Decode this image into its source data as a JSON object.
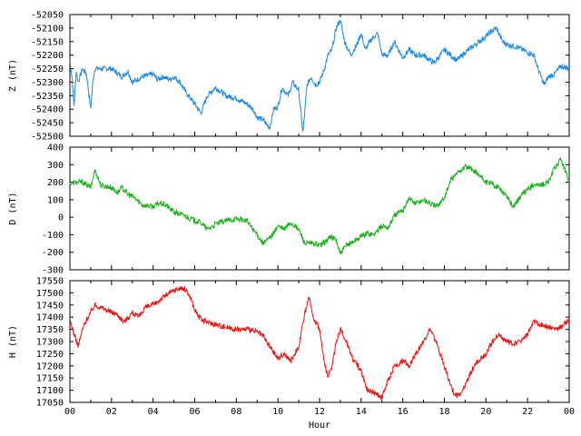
{
  "chart_data": [
    {
      "type": "line",
      "xlabel": "",
      "ylabel": "Z (nT)",
      "xlim": [
        0,
        24
      ],
      "ylim": [
        -52500,
        -52050
      ],
      "yticks": [
        -52050,
        -52100,
        -52150,
        -52200,
        -52250,
        -52300,
        -52350,
        -52400,
        -52450,
        -52500
      ],
      "color": "#1e88e5",
      "series": [
        {
          "x": [
            0,
            0.1,
            0.2,
            0.3,
            0.4,
            0.6,
            0.8,
            1.0,
            1.1,
            1.2,
            1.5,
            2.0,
            2.5,
            2.8,
            3.0,
            3.5,
            4.0,
            4.2,
            4.5,
            4.8,
            5.0,
            5.3,
            5.6,
            6.0,
            6.3,
            6.6,
            7.0,
            7.5,
            8.0,
            8.5,
            8.8,
            9.0,
            9.3,
            9.6,
            9.8,
            10.0,
            10.2,
            10.5,
            10.7,
            11.0,
            11.2,
            11.4,
            11.6,
            11.8,
            12.0,
            12.2,
            12.4,
            12.6,
            12.8,
            13.0,
            13.2,
            13.5,
            13.8,
            14.0,
            14.2,
            14.5,
            14.8,
            15.0,
            15.3,
            15.6,
            16.0,
            16.3,
            16.6,
            17.0,
            17.5,
            18.0,
            18.3,
            18.6,
            19.0,
            19.5,
            20.0,
            20.3,
            20.5,
            20.8,
            21.0,
            21.5,
            22.0,
            22.3,
            22.5,
            22.8,
            23.0,
            23.3,
            23.6,
            24.0
          ],
          "values": [
            -52220,
            -52280,
            -52390,
            -52260,
            -52300,
            -52250,
            -52270,
            -52400,
            -52300,
            -52250,
            -52250,
            -52250,
            -52280,
            -52260,
            -52300,
            -52280,
            -52270,
            -52290,
            -52280,
            -52290,
            -52280,
            -52300,
            -52340,
            -52380,
            -52415,
            -52350,
            -52320,
            -52350,
            -52360,
            -52380,
            -52400,
            -52430,
            -52440,
            -52470,
            -52400,
            -52390,
            -52320,
            -52350,
            -52300,
            -52330,
            -52490,
            -52310,
            -52280,
            -52310,
            -52300,
            -52260,
            -52200,
            -52180,
            -52100,
            -52070,
            -52150,
            -52200,
            -52160,
            -52120,
            -52180,
            -52140,
            -52120,
            -52200,
            -52200,
            -52150,
            -52210,
            -52180,
            -52200,
            -52200,
            -52230,
            -52180,
            -52200,
            -52220,
            -52190,
            -52160,
            -52130,
            -52110,
            -52100,
            -52150,
            -52160,
            -52170,
            -52190,
            -52200,
            -52250,
            -52310,
            -52280,
            -52270,
            -52240,
            -52250
          ]
        }
      ]
    },
    {
      "type": "line",
      "xlabel": "",
      "ylabel": "D (nT)",
      "xlim": [
        0,
        24
      ],
      "ylim": [
        -300,
        400
      ],
      "yticks": [
        400,
        300,
        200,
        100,
        0,
        -100,
        -200,
        -300
      ],
      "color": "#1ab01a",
      "series": [
        {
          "x": [
            0,
            0.3,
            0.6,
            1.0,
            1.2,
            1.5,
            2.0,
            2.3,
            2.5,
            2.8,
            3.0,
            3.5,
            4.0,
            4.3,
            4.6,
            5.0,
            5.5,
            6.0,
            6.3,
            6.6,
            7.0,
            7.5,
            8.0,
            8.5,
            9.0,
            9.3,
            9.5,
            9.8,
            10.0,
            10.3,
            10.6,
            11.0,
            11.3,
            11.6,
            12.0,
            12.3,
            12.5,
            12.8,
            13.0,
            13.3,
            13.6,
            14.0,
            14.3,
            14.6,
            15.0,
            15.3,
            15.6,
            16.0,
            16.3,
            16.6,
            17.0,
            17.3,
            17.6,
            18.0,
            18.3,
            18.6,
            19.0,
            19.5,
            20.0,
            20.3,
            20.6,
            21.0,
            21.3,
            21.6,
            22.0,
            22.3,
            22.6,
            23.0,
            23.3,
            23.6,
            24.0
          ],
          "values": [
            190,
            200,
            200,
            170,
            270,
            180,
            170,
            140,
            170,
            130,
            120,
            70,
            60,
            80,
            70,
            30,
            10,
            -20,
            -30,
            -70,
            -40,
            -20,
            -10,
            -20,
            -100,
            -150,
            -130,
            -90,
            -50,
            -70,
            -30,
            -70,
            -150,
            -150,
            -160,
            -140,
            -110,
            -130,
            -210,
            -160,
            -140,
            -110,
            -90,
            -100,
            -50,
            -60,
            10,
            40,
            110,
            80,
            100,
            80,
            60,
            110,
            210,
            250,
            290,
            260,
            200,
            190,
            170,
            120,
            60,
            110,
            160,
            190,
            180,
            200,
            280,
            330,
            200
          ]
        }
      ]
    },
    {
      "type": "line",
      "xlabel": "Hour",
      "ylabel": "H (nT)",
      "xlim": [
        0,
        24
      ],
      "ylim": [
        17050,
        17550
      ],
      "yticks": [
        17550,
        17500,
        17450,
        17400,
        17350,
        17300,
        17250,
        17200,
        17150,
        17100,
        17050
      ],
      "xticks": [
        "00",
        "02",
        "04",
        "06",
        "08",
        "10",
        "12",
        "14",
        "16",
        "18",
        "20",
        "22",
        "00"
      ],
      "color": "#ee1111",
      "series": [
        {
          "x": [
            0,
            0.2,
            0.4,
            0.6,
            0.8,
            1.0,
            1.2,
            1.5,
            2.0,
            2.3,
            2.6,
            3.0,
            3.3,
            3.6,
            4.0,
            4.3,
            4.6,
            5.0,
            5.3,
            5.6,
            5.8,
            6.0,
            6.3,
            6.6,
            7.0,
            7.5,
            8.0,
            8.5,
            9.0,
            9.3,
            9.6,
            10.0,
            10.3,
            10.6,
            11.0,
            11.3,
            11.5,
            11.7,
            12.0,
            12.2,
            12.4,
            12.6,
            12.8,
            13.0,
            13.3,
            13.6,
            14.0,
            14.3,
            14.6,
            15.0,
            15.3,
            15.6,
            16.0,
            16.3,
            16.6,
            17.0,
            17.3,
            17.6,
            18.0,
            18.3,
            18.5,
            18.8,
            19.0,
            19.3,
            19.6,
            20.0,
            20.3,
            20.6,
            21.0,
            21.3,
            21.6,
            22.0,
            22.3,
            22.6,
            23.0,
            23.3,
            23.6,
            24.0
          ],
          "values": [
            17390,
            17330,
            17280,
            17350,
            17390,
            17420,
            17450,
            17440,
            17420,
            17410,
            17380,
            17420,
            17400,
            17440,
            17450,
            17470,
            17490,
            17510,
            17520,
            17510,
            17480,
            17430,
            17390,
            17380,
            17370,
            17360,
            17350,
            17350,
            17340,
            17320,
            17280,
            17230,
            17250,
            17220,
            17280,
            17420,
            17480,
            17400,
            17350,
            17230,
            17150,
            17200,
            17300,
            17350,
            17300,
            17230,
            17180,
            17100,
            17090,
            17070,
            17140,
            17200,
            17220,
            17200,
            17250,
            17300,
            17350,
            17300,
            17200,
            17120,
            17080,
            17080,
            17120,
            17180,
            17220,
            17250,
            17300,
            17330,
            17300,
            17290,
            17300,
            17330,
            17380,
            17370,
            17360,
            17350,
            17360,
            17390
          ]
        }
      ]
    }
  ]
}
